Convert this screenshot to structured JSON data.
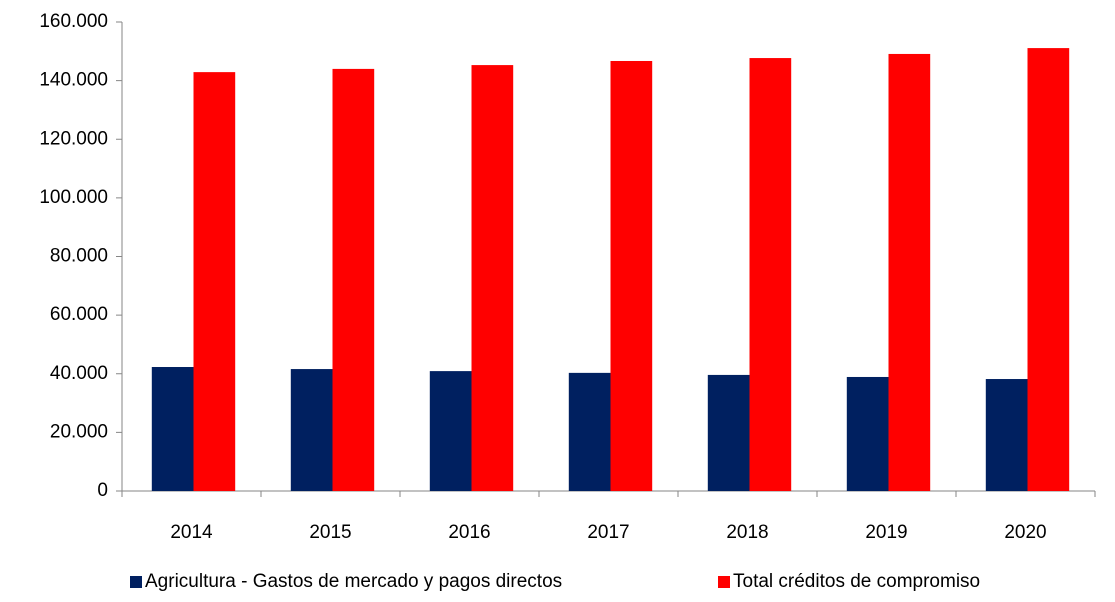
{
  "chart_data": {
    "type": "bar",
    "categories": [
      "2014",
      "2015",
      "2016",
      "2017",
      "2018",
      "2019",
      "2020"
    ],
    "series": [
      {
        "name": "Agricultura - Gastos de mercado y pagos directos",
        "color": "#002060",
        "values": [
          42300,
          41600,
          40900,
          40300,
          39600,
          38900,
          38200
        ]
      },
      {
        "name": "Total créditos de compromiso",
        "color": "#ff0000",
        "values": [
          142900,
          144000,
          145300,
          146700,
          147700,
          149100,
          151100
        ]
      }
    ],
    "ylim": [
      0,
      160000
    ],
    "yticks": [
      0,
      {
        "value": 20000,
        "label": "20.000"
      },
      {
        "value": 40000,
        "label": "40.000"
      },
      {
        "value": 60000,
        "label": "60.000"
      },
      {
        "value": 80000,
        "label": "80.000"
      },
      {
        "value": 100000,
        "label": "100.000"
      },
      {
        "value": 120000,
        "label": "120.000"
      },
      {
        "value": 140000,
        "label": "140.000"
      },
      {
        "value": 160000,
        "label": "160.000"
      }
    ],
    "grid": false,
    "legend": "bottom"
  }
}
